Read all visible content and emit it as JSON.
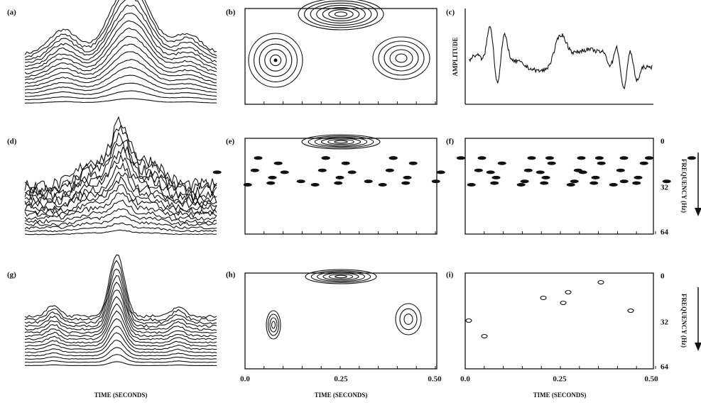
{
  "panels": [
    {
      "label": "(a)"
    },
    {
      "label": "(b)"
    },
    {
      "label": "(c)"
    },
    {
      "label": "(d)"
    },
    {
      "label": "(e)"
    },
    {
      "label": "(f)"
    },
    {
      "label": "(g)"
    },
    {
      "label": "(h)"
    },
    {
      "label": "(i)"
    }
  ],
  "axes": {
    "amplitude_label": "AMPLITUDE",
    "frequency_label": "FREQUENCY (Hz)",
    "time_label": "TIME (SECONDS)",
    "time_ticks": [
      "0.0",
      "0.25",
      "0.50"
    ],
    "frequency_ticks": [
      "0",
      "32",
      "64"
    ]
  }
}
